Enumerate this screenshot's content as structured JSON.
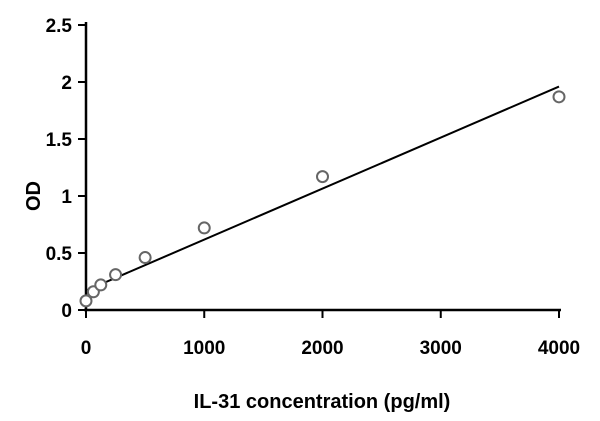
{
  "chart_data": {
    "type": "scatter",
    "title": "",
    "xlabel": "IL-31 concentration (pg/ml)",
    "ylabel": "OD",
    "xlim": [
      0,
      4000
    ],
    "ylim": [
      0,
      2.5
    ],
    "xticks": [
      0,
      1000,
      2000,
      3000,
      4000
    ],
    "yticks": [
      0,
      0.5,
      1,
      1.5,
      2,
      2.5
    ],
    "grid": false,
    "points": {
      "x": [
        0,
        62.5,
        125,
        250,
        500,
        1000,
        2000,
        4000
      ],
      "y": [
        0.08,
        0.16,
        0.22,
        0.31,
        0.46,
        0.72,
        1.17,
        1.87
      ]
    },
    "fit_line": {
      "x": [
        0,
        4000
      ],
      "y": [
        0.17,
        1.96
      ]
    }
  }
}
